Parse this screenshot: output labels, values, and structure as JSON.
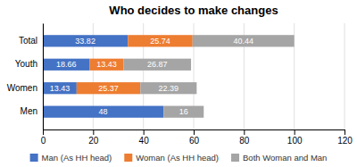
{
  "chart_data": {
    "type": "bar",
    "orientation": "horizontal",
    "stacked": true,
    "data_labels": true,
    "title": "Who decides to make changes",
    "categories": [
      "Men",
      "Women",
      "Youth",
      "Total"
    ],
    "series": [
      {
        "name": "Man (As HH head)",
        "color": "#4472C4",
        "values": [
          48,
          13.43,
          18.66,
          33.82
        ]
      },
      {
        "name": "Woman (As HH head)",
        "color": "#ED7D31",
        "values": [
          0,
          25.37,
          13.43,
          25.74
        ]
      },
      {
        "name": "Both Woman and Man",
        "color": "#A5A5A5",
        "values": [
          16,
          22.39,
          26.87,
          40.44
        ]
      }
    ],
    "xlim": [
      0,
      120
    ],
    "xticks": [
      0,
      20,
      40,
      60,
      80,
      100,
      120
    ],
    "grid": true,
    "legend": "bottom"
  }
}
